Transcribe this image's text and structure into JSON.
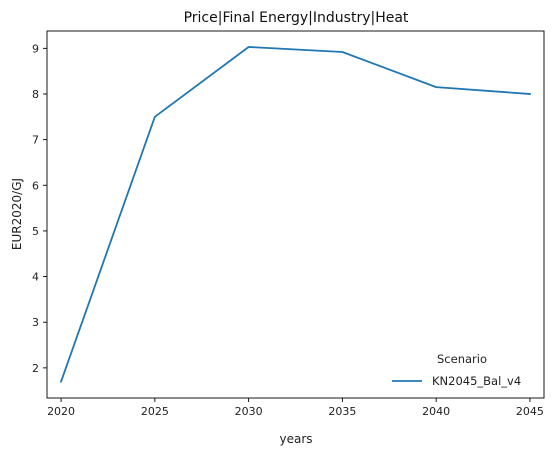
{
  "chart_data": {
    "type": "line",
    "title": "Price|Final Energy|Industry|Heat",
    "xlabel": "years",
    "ylabel": "EUR2020/GJ",
    "x": [
      2020,
      2025,
      2030,
      2035,
      2040,
      2045
    ],
    "x_ticks": [
      "2020",
      "2025",
      "2030",
      "2035",
      "2040",
      "2045"
    ],
    "y_ticks": [
      "2",
      "3",
      "4",
      "5",
      "6",
      "7",
      "8",
      "9"
    ],
    "xlim": [
      2019.25,
      2045.75
    ],
    "ylim": [
      1.34,
      9.38
    ],
    "grid": false,
    "legend": {
      "title": "Scenario",
      "placement": "lower-right"
    },
    "series": [
      {
        "name": "KN2045_Bal_v4",
        "color": "#1f77b4",
        "values": [
          1.7,
          7.5,
          9.03,
          8.92,
          8.15,
          8.0
        ]
      }
    ]
  }
}
